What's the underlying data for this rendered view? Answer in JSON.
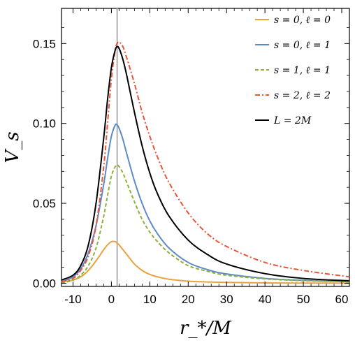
{
  "chart_data": {
    "type": "line",
    "xlabel": "r_*/M",
    "ylabel": "V_s",
    "xlim": [
      -13,
      62
    ],
    "ylim": [
      -0.002,
      0.172
    ],
    "x_ticks": [
      -10,
      0,
      10,
      20,
      30,
      40,
      50,
      60
    ],
    "x_tick_labels": [
      "-10",
      "0",
      "10",
      "20",
      "30",
      "40",
      "50",
      "60"
    ],
    "y_ticks": [
      0.0,
      0.05,
      0.1,
      0.15
    ],
    "y_tick_labels": [
      "0.00",
      "0.05",
      "0.10",
      "0.15"
    ],
    "grid": false,
    "legend_position": "top-right",
    "vertical_reference_line": {
      "x": 1.5,
      "color": "#b0b0b0"
    },
    "x": [
      -13,
      -10,
      -8,
      -6,
      -4,
      -2,
      -1,
      0,
      1,
      1.5,
      2,
      3,
      4,
      6,
      8,
      10,
      12,
      15,
      20,
      25,
      30,
      40,
      50,
      62
    ],
    "series": [
      {
        "name": "s = 0, ℓ = 0",
        "color": "#e8a33d",
        "dash": "solid",
        "values": [
          0.001,
          0.002,
          0.004,
          0.008,
          0.014,
          0.021,
          0.024,
          0.026,
          0.026,
          0.025,
          0.024,
          0.021,
          0.018,
          0.012,
          0.008,
          0.0055,
          0.004,
          0.0025,
          0.0013,
          0.0008,
          0.0005,
          0.0002,
          0.0001,
          0.0
        ]
      },
      {
        "name": "s = 0, ℓ = 1",
        "color": "#5e8ac6",
        "dash": "solid",
        "values": [
          0.001,
          0.004,
          0.009,
          0.019,
          0.036,
          0.062,
          0.078,
          0.092,
          0.099,
          0.099,
          0.097,
          0.09,
          0.081,
          0.064,
          0.05,
          0.039,
          0.031,
          0.022,
          0.013,
          0.0085,
          0.0058,
          0.003,
          0.0018,
          0.001
        ]
      },
      {
        "name": "s = 1, ℓ = 1",
        "color": "#8db03a",
        "dash": "dash",
        "values": [
          0.0,
          0.002,
          0.005,
          0.011,
          0.022,
          0.042,
          0.055,
          0.067,
          0.073,
          0.074,
          0.073,
          0.069,
          0.063,
          0.051,
          0.04,
          0.032,
          0.026,
          0.019,
          0.011,
          0.0075,
          0.005,
          0.0027,
          0.0016,
          0.0009
        ]
      },
      {
        "name": "s = 2, ℓ = 2",
        "color": "#e8563a",
        "dash": "dashdot",
        "values": [
          0.001,
          0.003,
          0.008,
          0.017,
          0.036,
          0.073,
          0.1,
          0.128,
          0.146,
          0.15,
          0.151,
          0.148,
          0.141,
          0.125,
          0.107,
          0.092,
          0.079,
          0.063,
          0.044,
          0.031,
          0.023,
          0.013,
          0.008,
          0.004
        ]
      },
      {
        "name": "L = 2M",
        "color": "#000000",
        "dash": "solid",
        "values": [
          0.002,
          0.005,
          0.011,
          0.024,
          0.05,
          0.091,
          0.115,
          0.135,
          0.146,
          0.148,
          0.147,
          0.14,
          0.13,
          0.107,
          0.086,
          0.069,
          0.056,
          0.042,
          0.027,
          0.018,
          0.012,
          0.006,
          0.003,
          0.0015
        ]
      }
    ]
  }
}
